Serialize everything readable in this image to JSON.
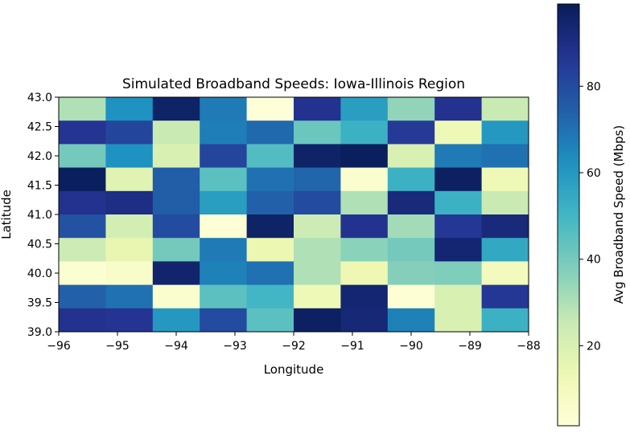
{
  "chart_data": {
    "type": "heatmap",
    "title": "Simulated Broadband Speeds: Iowa-Illinois Region",
    "xlabel": "Longitude",
    "ylabel": "Latitude",
    "colorbar_label": "Avg Broadband Speed (Mbps)",
    "colormap": "YlGnBu",
    "xlim": [
      -96,
      -88
    ],
    "ylim": [
      39.0,
      43.0
    ],
    "clim": [
      1.5,
      99
    ],
    "x_ticks": [
      "−96",
      "−95",
      "−94",
      "−93",
      "−92",
      "−91",
      "−90",
      "−89",
      "−88"
    ],
    "x_tick_values": [
      -96,
      -95,
      -94,
      -93,
      -92,
      -91,
      -90,
      -89,
      -88
    ],
    "y_ticks": [
      "39.0",
      "39.5",
      "40.0",
      "40.5",
      "41.0",
      "41.5",
      "42.0",
      "42.5",
      "43.0"
    ],
    "y_tick_values": [
      39.0,
      39.5,
      40.0,
      40.5,
      41.0,
      41.5,
      42.0,
      42.5,
      43.0
    ],
    "colorbar_ticks": [
      "20",
      "40",
      "60",
      "80"
    ],
    "colorbar_tick_values": [
      20,
      40,
      60,
      80
    ],
    "rows_top_to_bottom": [
      [
        30,
        62,
        96,
        68,
        2,
        88,
        58,
        35,
        88,
        25
      ],
      [
        87,
        82,
        25,
        67,
        72,
        42,
        52,
        85,
        12,
        60
      ],
      [
        40,
        62,
        20,
        82,
        47,
        96,
        98,
        20,
        68,
        70
      ],
      [
        98,
        18,
        75,
        45,
        70,
        73,
        5,
        52,
        97,
        12
      ],
      [
        88,
        90,
        75,
        58,
        74,
        80,
        30,
        92,
        52,
        25
      ],
      [
        78,
        22,
        80,
        3,
        96,
        24,
        88,
        32,
        86,
        92
      ],
      [
        24,
        15,
        40,
        68,
        14,
        30,
        36,
        40,
        94,
        55
      ],
      [
        4,
        6,
        95,
        66,
        70,
        30,
        13,
        37,
        38,
        10
      ],
      [
        74,
        70,
        5,
        45,
        50,
        12,
        94,
        3,
        20,
        86
      ],
      [
        88,
        87,
        60,
        80,
        45,
        97,
        93,
        66,
        20,
        52
      ]
    ]
  }
}
